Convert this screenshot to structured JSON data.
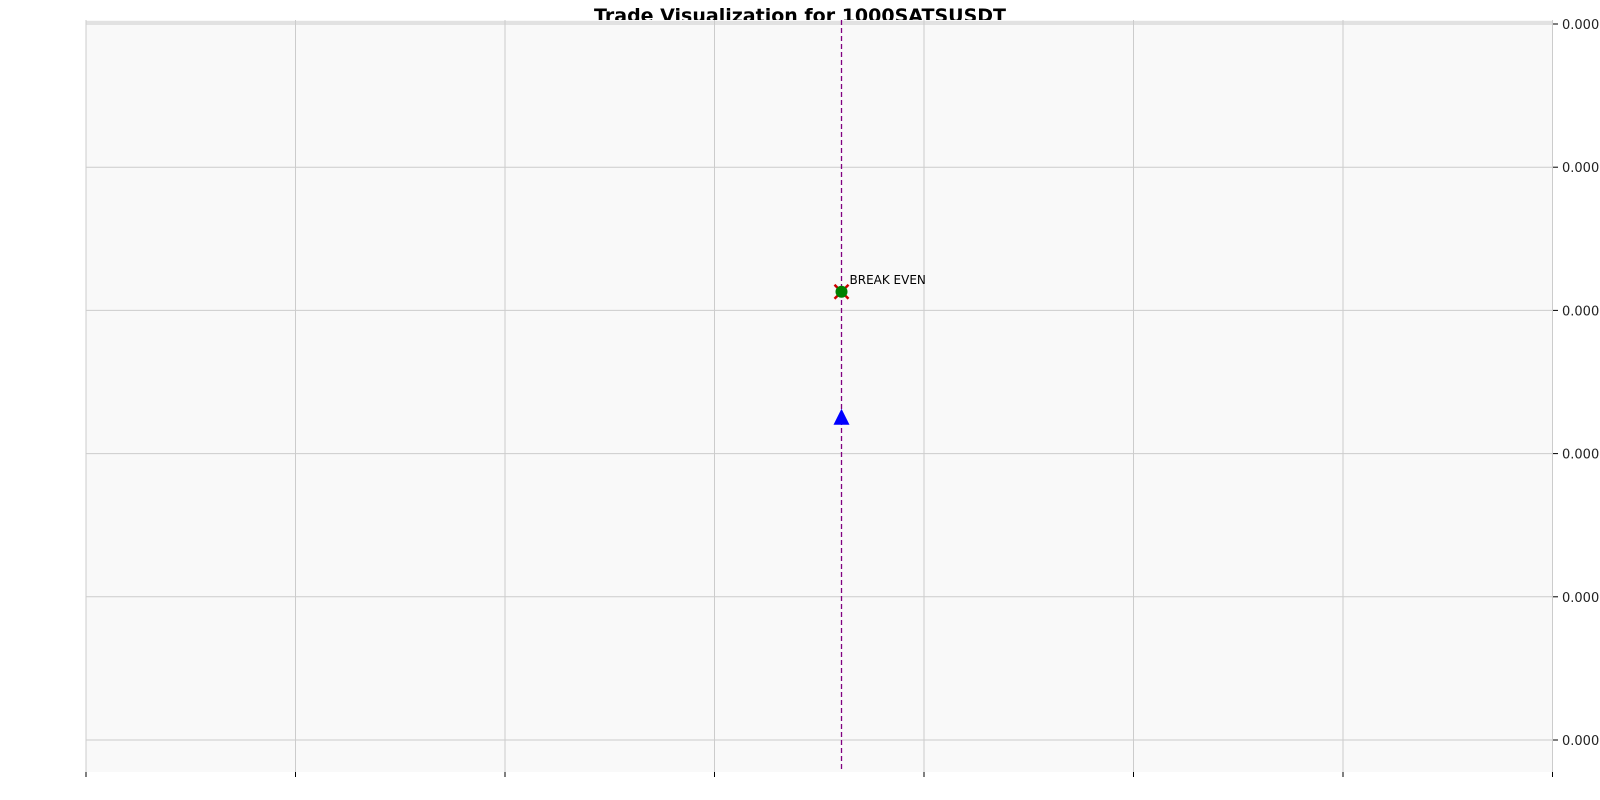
{
  "chart_data": {
    "type": "scatter",
    "title": "Trade Visualization for 1000SATSUSDT",
    "xlabel": "",
    "ylabel": "",
    "grid": true,
    "y_axis_side": "right",
    "x_tick_labels_visible": false,
    "x_tick_count": 8,
    "y_tick_labels": [
      "0.000",
      "0.000",
      "0.000",
      "0.000",
      "0.000",
      "0.000"
    ],
    "markers": [
      {
        "type": "entry",
        "shape": "triangle-up",
        "color": "#0000ff",
        "x": 0.515,
        "y": 2.25
      },
      {
        "type": "exit",
        "shape": "x",
        "color": "#cc0000",
        "x": 0.515,
        "y": 3.13
      },
      {
        "type": "exit",
        "shape": "circle",
        "color": "#008000",
        "x": 0.515,
        "y": 3.13
      }
    ],
    "vertical_line": {
      "x": 0.515,
      "color": "#800080",
      "style": "dashed"
    },
    "annotations": [
      {
        "text": "BREAK EVEN",
        "x": 0.515,
        "y": 3.13
      }
    ]
  }
}
